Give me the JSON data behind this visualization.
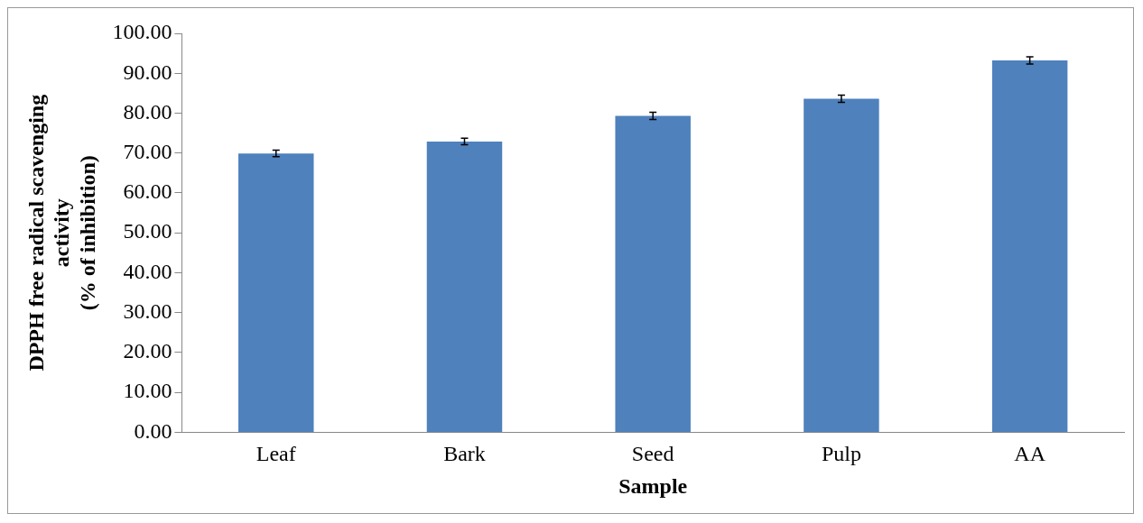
{
  "chart_data": {
    "type": "bar",
    "xlabel": "Sample",
    "ylabel": "DPPH free radical scavenging\nactivity\n(% of inhibition)",
    "categories": [
      "Leaf",
      "Bark",
      "Seed",
      "Pulp",
      "AA"
    ],
    "values": [
      69.9,
      72.9,
      79.3,
      83.6,
      93.2
    ],
    "errors": [
      0.8,
      0.8,
      0.9,
      0.9,
      0.9
    ],
    "color": "#4f81bd",
    "ylim": [
      0,
      100
    ],
    "yticks": [
      {
        "value": 0,
        "label": "0.00"
      },
      {
        "value": 10,
        "label": "10.00"
      },
      {
        "value": 20,
        "label": "20.00"
      },
      {
        "value": 30,
        "label": "30.00"
      },
      {
        "value": 40,
        "label": "40.00"
      },
      {
        "value": 50,
        "label": "50.00"
      },
      {
        "value": 60,
        "label": "60.00"
      },
      {
        "value": 70,
        "label": "70.00"
      },
      {
        "value": 80,
        "label": "80.00"
      },
      {
        "value": 90,
        "label": "90.00"
      },
      {
        "value": 100,
        "label": "100.00"
      }
    ],
    "grid": false,
    "legend": false
  }
}
